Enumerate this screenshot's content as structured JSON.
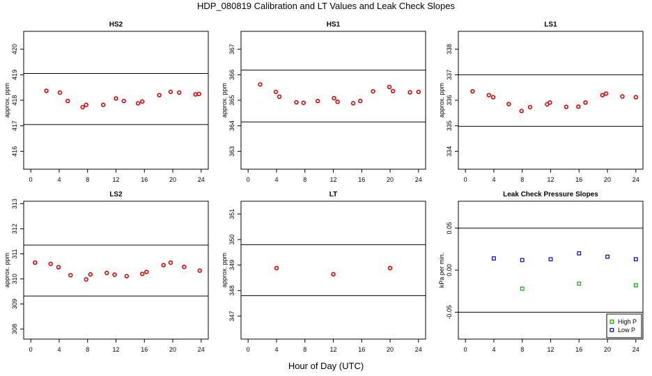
{
  "figure": {
    "title": "HDP_080819  Calibration and LT Values and Leak Check Slopes",
    "xlabel": "Hour of Day (UTC)"
  },
  "colors": {
    "calibration": "#e00000",
    "high_p": "#00b000",
    "low_p": "#0000cc"
  },
  "chart_data": [
    {
      "type": "scatter",
      "title": "HS2",
      "ylabel": "approx. ppm",
      "xlim": [
        -1,
        25
      ],
      "ylim": [
        415.3,
        420.7
      ],
      "xticks": [
        0,
        4,
        8,
        12,
        16,
        20,
        24
      ],
      "yticks": [
        416,
        417,
        418,
        419,
        420
      ],
      "hlines": [
        419.05,
        417.05
      ],
      "grid": false,
      "series": [
        {
          "color": "#e00000",
          "x": [
            2.2,
            4.1,
            5.2,
            7.3,
            7.8,
            10.2,
            12.0,
            13.1,
            15.1,
            15.7,
            18.1,
            19.7,
            20.9,
            23.2,
            23.7
          ],
          "y": [
            418.37,
            418.3,
            417.97,
            417.73,
            417.82,
            417.82,
            418.07,
            417.97,
            417.88,
            417.95,
            418.2,
            418.33,
            418.3,
            418.23,
            418.25
          ]
        }
      ]
    },
    {
      "type": "scatter",
      "title": "HS1",
      "ylabel": "approx. ppm",
      "xlim": [
        -1,
        25
      ],
      "ylim": [
        362.3,
        367.7
      ],
      "xticks": [
        0,
        4,
        8,
        12,
        16,
        20,
        24
      ],
      "yticks": [
        363,
        364,
        365,
        366,
        367
      ],
      "hlines": [
        366.18,
        364.15
      ],
      "grid": false,
      "series": [
        {
          "color": "#e00000",
          "x": [
            1.7,
            3.9,
            4.4,
            6.8,
            7.8,
            9.8,
            12.1,
            12.6,
            14.8,
            15.8,
            17.6,
            19.9,
            20.4,
            22.8,
            24.0
          ],
          "y": [
            365.62,
            365.33,
            365.14,
            364.92,
            364.9,
            364.97,
            365.08,
            364.94,
            364.88,
            364.97,
            365.35,
            365.52,
            365.36,
            365.31,
            365.33
          ]
        }
      ]
    },
    {
      "type": "scatter",
      "title": "LS1",
      "ylabel": "approx. ppm",
      "xlim": [
        -1,
        25
      ],
      "ylim": [
        333.3,
        338.7
      ],
      "xticks": [
        0,
        4,
        8,
        12,
        16,
        20,
        24
      ],
      "yticks": [
        334,
        335,
        336,
        337,
        338
      ],
      "hlines": [
        337.0,
        334.98
      ],
      "grid": false,
      "series": [
        {
          "color": "#e00000",
          "x": [
            1.0,
            3.3,
            3.9,
            6.1,
            7.9,
            9.1,
            11.5,
            11.9,
            14.2,
            15.9,
            16.9,
            19.3,
            19.8,
            22.1,
            24.0
          ],
          "y": [
            336.35,
            336.2,
            336.12,
            335.85,
            335.58,
            335.73,
            335.84,
            335.91,
            335.74,
            335.75,
            335.91,
            336.2,
            336.26,
            336.15,
            336.12
          ]
        }
      ]
    },
    {
      "type": "scatter",
      "title": "LS2",
      "ylabel": "approx. ppm",
      "xlim": [
        -1,
        25
      ],
      "ylim": [
        307.6,
        313.1
      ],
      "xticks": [
        0,
        4,
        8,
        12,
        16,
        20,
        24
      ],
      "yticks": [
        308,
        309,
        310,
        311,
        312,
        313
      ],
      "hlines": [
        311.35,
        309.32
      ],
      "grid": false,
      "series": [
        {
          "color": "#e00000",
          "x": [
            0.6,
            2.8,
            3.9,
            5.6,
            7.8,
            8.4,
            10.7,
            11.8,
            13.5,
            15.7,
            16.3,
            18.7,
            19.7,
            21.6,
            23.8
          ],
          "y": [
            310.65,
            310.6,
            310.47,
            310.15,
            309.98,
            310.18,
            310.24,
            310.17,
            310.11,
            310.2,
            310.28,
            310.55,
            310.65,
            310.48,
            310.33
          ]
        }
      ]
    },
    {
      "type": "scatter",
      "title": "LT",
      "ylabel": "approx. ppm",
      "xlim": [
        -1,
        25
      ],
      "ylim": [
        346.1,
        351.5
      ],
      "xticks": [
        0,
        4,
        8,
        12,
        16,
        20,
        24
      ],
      "yticks": [
        347,
        348,
        349,
        350,
        351
      ],
      "hlines": [
        349.8,
        347.8
      ],
      "grid": false,
      "series": [
        {
          "color": "#e00000",
          "x": [
            4.0,
            12.0,
            20.0
          ],
          "y": [
            348.88,
            348.64,
            348.88
          ]
        }
      ]
    },
    {
      "type": "scatter",
      "title": "Leak Check Pressure Slopes",
      "ylabel": "kPa per min.",
      "xlim": [
        -1,
        25
      ],
      "ylim": [
        -0.082,
        0.082
      ],
      "xticks": [
        0,
        4,
        8,
        12,
        16,
        20,
        24
      ],
      "yticks": [
        -0.05,
        0.0,
        0.05
      ],
      "ytick_labels": [
        "-0.05",
        "0.00",
        "0.05"
      ],
      "hlines": [
        0.05,
        -0.05
      ],
      "grid": false,
      "legend_position": "bottom-right",
      "series": [
        {
          "name": "High P",
          "color": "#00b000",
          "x": [
            8,
            16,
            24
          ],
          "y": [
            -0.022,
            -0.016,
            -0.018
          ]
        },
        {
          "name": "Low P",
          "color": "#0000cc",
          "x": [
            4,
            8,
            12,
            16,
            20,
            24
          ],
          "y": [
            0.014,
            0.012,
            0.013,
            0.02,
            0.016,
            0.013
          ]
        }
      ]
    }
  ]
}
